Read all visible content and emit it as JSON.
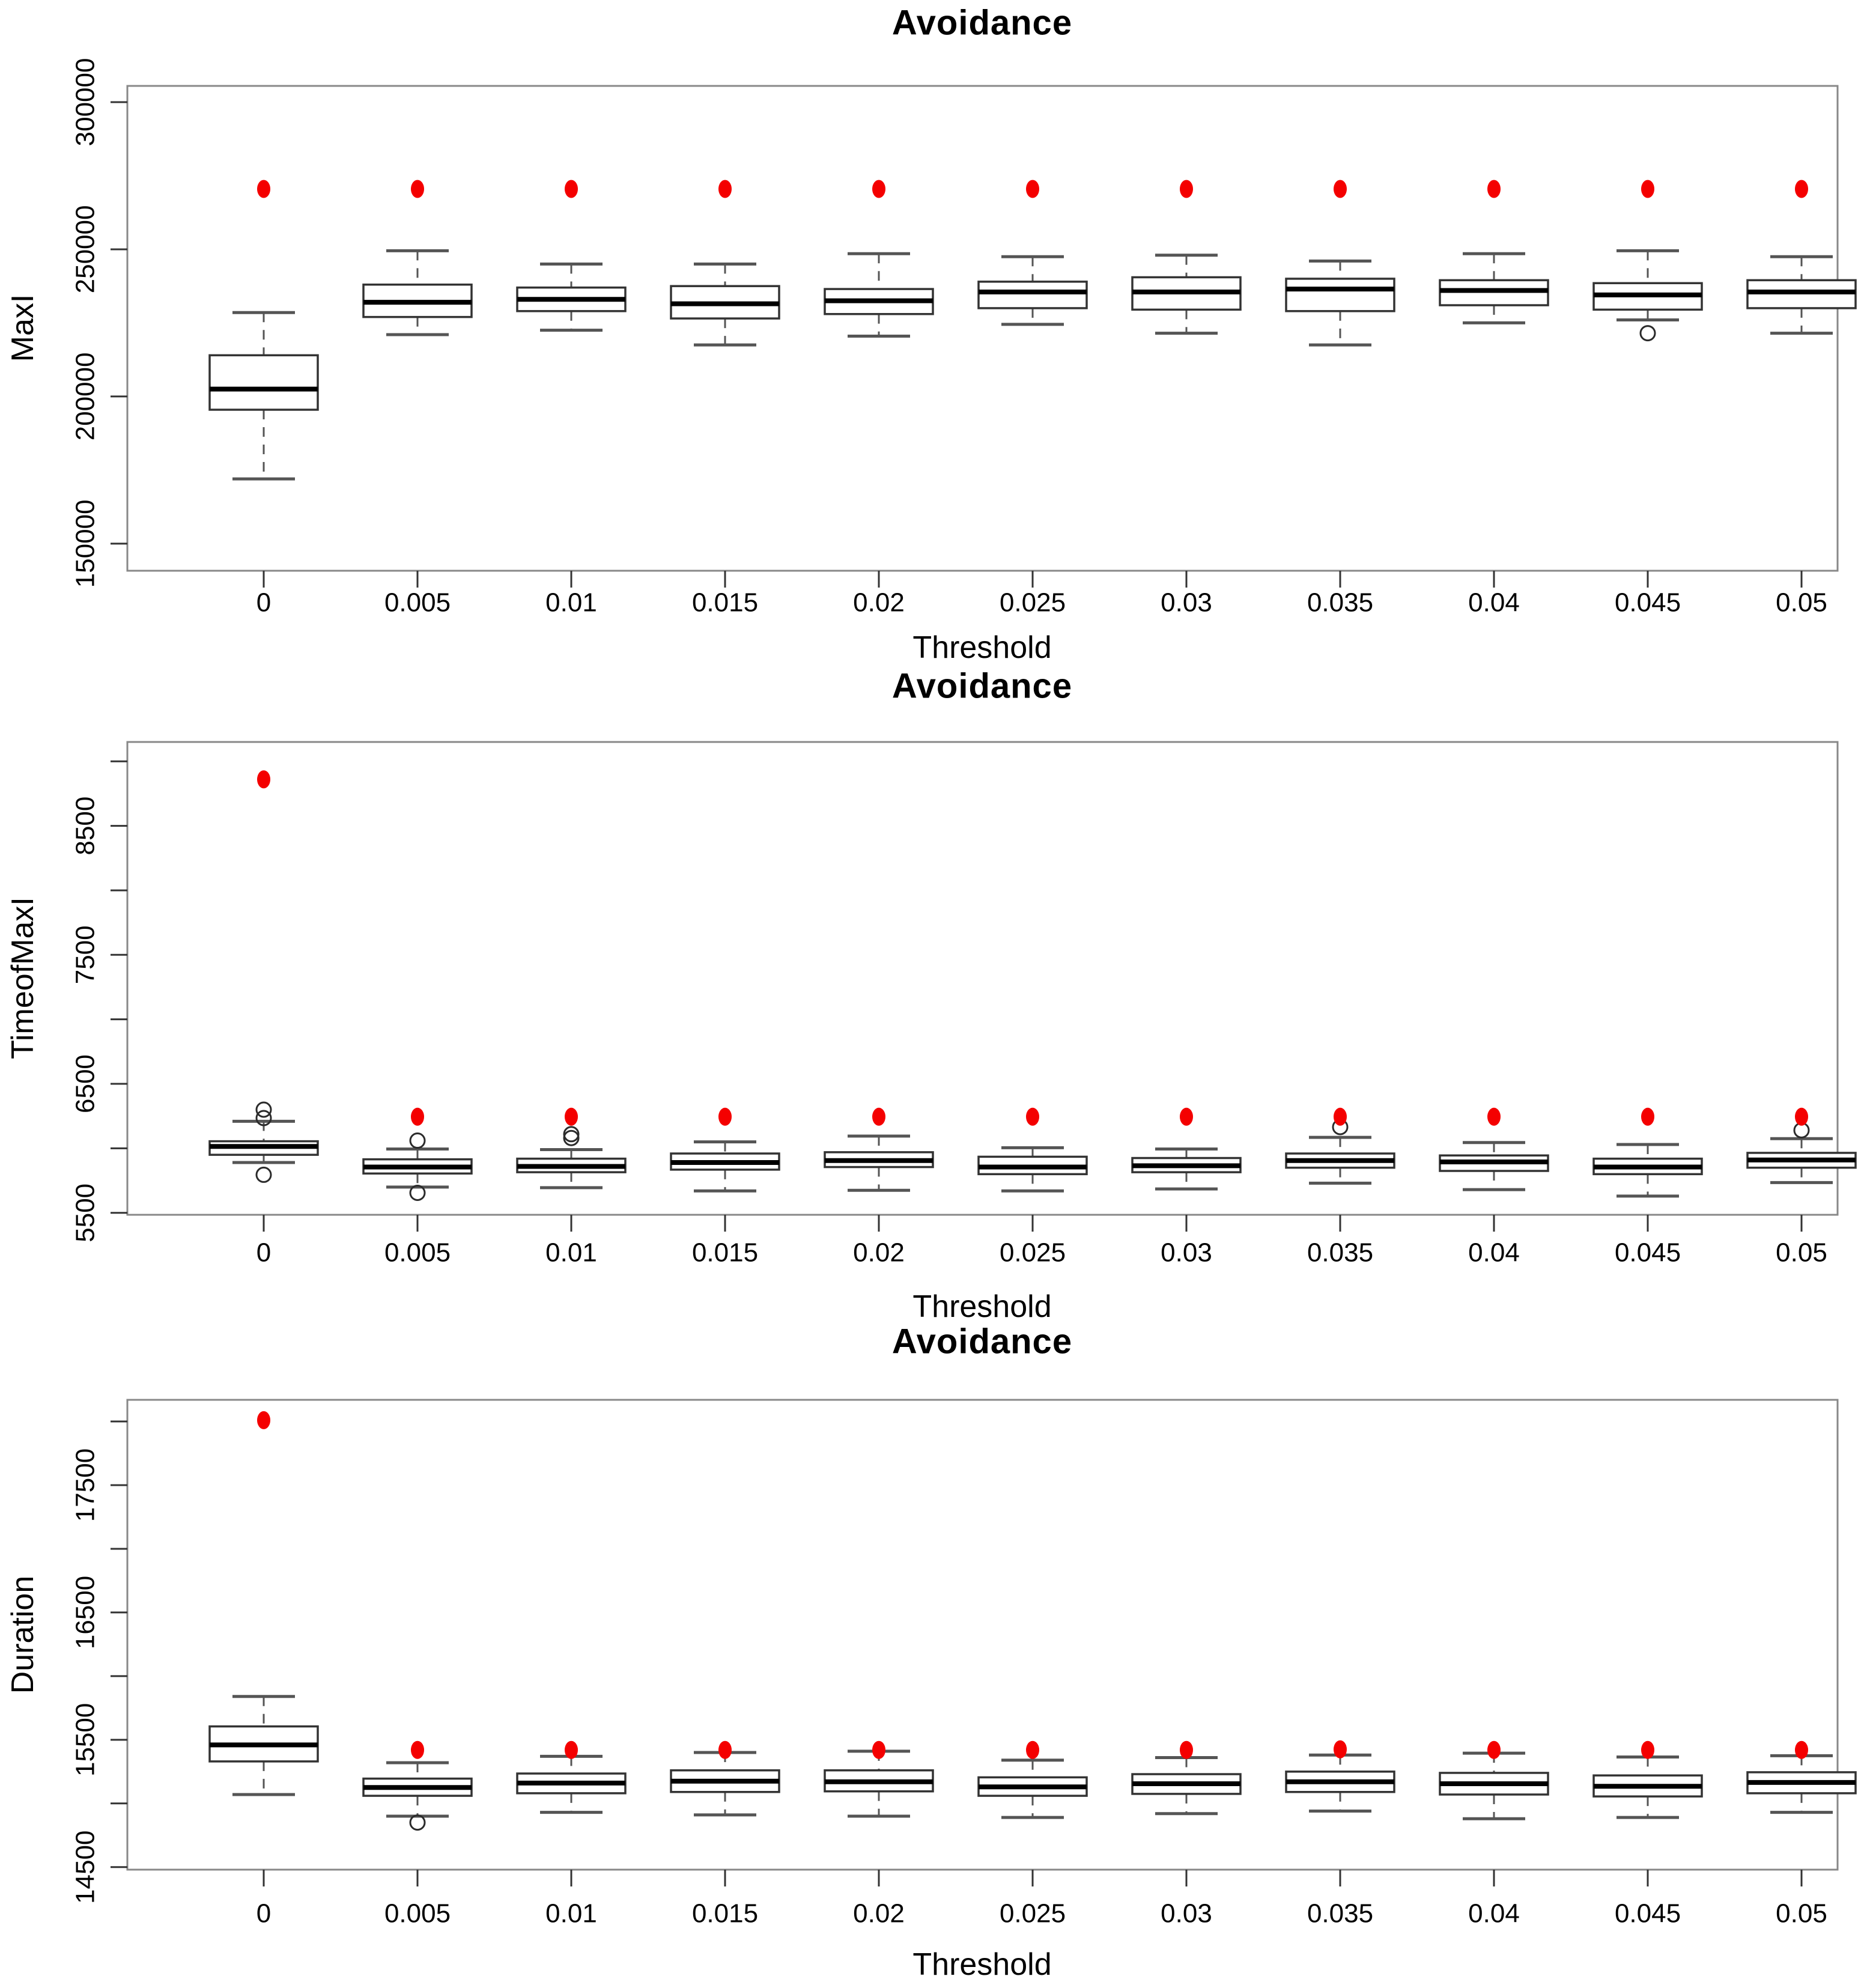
{
  "figure": {
    "background": "#ffffff"
  },
  "style": {
    "accent_red": "#f40000",
    "frame_gray": "#888888",
    "box_stroke": "#333333",
    "median_black": "#000000",
    "whisker_gray": "#555555",
    "tick_color": "#333333"
  },
  "chart_data": [
    {
      "type": "box",
      "title": "Avoidance",
      "xlabel": "Threshold",
      "ylabel": "MaxI",
      "legend": "none",
      "grid": false,
      "categories": [
        "0",
        "0.005",
        "0.01",
        "0.015",
        "0.02",
        "0.025",
        "0.03",
        "0.035",
        "0.04",
        "0.045",
        "0.05"
      ],
      "ylim": [
        140800,
        305500
      ],
      "yticks": [
        {
          "value": 150000,
          "label": "150000"
        },
        {
          "value": 200000,
          "label": "200000"
        },
        {
          "value": 250000,
          "label": "250000"
        },
        {
          "value": 300000,
          "label": "300000"
        }
      ],
      "yticks_minor": [],
      "boxes": [
        {
          "category": "0",
          "low": 172000,
          "q1": 195500,
          "median": 202500,
          "q3": 214000,
          "high": 228500,
          "outliers": [],
          "red_point": 270500
        },
        {
          "category": "0.005",
          "low": 221000,
          "q1": 227000,
          "median": 232000,
          "q3": 238000,
          "high": 249500,
          "outliers": [],
          "red_point": 270500
        },
        {
          "category": "0.01",
          "low": 222500,
          "q1": 229000,
          "median": 233000,
          "q3": 237000,
          "high": 245000,
          "outliers": [],
          "red_point": 270500
        },
        {
          "category": "0.015",
          "low": 217500,
          "q1": 226500,
          "median": 231500,
          "q3": 237500,
          "high": 245000,
          "outliers": [],
          "red_point": 270500
        },
        {
          "category": "0.02",
          "low": 220500,
          "q1": 228000,
          "median": 232500,
          "q3": 236500,
          "high": 248500,
          "outliers": [],
          "red_point": 270500
        },
        {
          "category": "0.025",
          "low": 224500,
          "q1": 230000,
          "median": 235500,
          "q3": 239000,
          "high": 247500,
          "outliers": [],
          "red_point": 270500
        },
        {
          "category": "0.03",
          "low": 221500,
          "q1": 229500,
          "median": 235500,
          "q3": 240500,
          "high": 248000,
          "outliers": [],
          "red_point": 270500
        },
        {
          "category": "0.035",
          "low": 217500,
          "q1": 229000,
          "median": 236500,
          "q3": 240000,
          "high": 246000,
          "outliers": [],
          "red_point": 270500
        },
        {
          "category": "0.04",
          "low": 225000,
          "q1": 231000,
          "median": 236000,
          "q3": 239500,
          "high": 248500,
          "outliers": [],
          "red_point": 270500
        },
        {
          "category": "0.045",
          "low": 226000,
          "q1": 229500,
          "median": 234500,
          "q3": 238500,
          "high": 249500,
          "outliers": [
            221500
          ],
          "red_point": 270500
        },
        {
          "category": "0.05",
          "low": 221500,
          "q1": 230000,
          "median": 235500,
          "q3": 239500,
          "high": 247500,
          "outliers": [],
          "red_point": 270500
        }
      ]
    },
    {
      "type": "box",
      "title": "Avoidance",
      "xlabel": "Threshold",
      "ylabel": "TimeofMaxI",
      "legend": "none",
      "grid": false,
      "categories": [
        "0",
        "0.005",
        "0.01",
        "0.015",
        "0.02",
        "0.025",
        "0.03",
        "0.035",
        "0.04",
        "0.045",
        "0.05"
      ],
      "ylim": [
        5485,
        9150
      ],
      "yticks": [
        {
          "value": 5500,
          "label": "5500"
        },
        {
          "value": 6500,
          "label": "6500"
        },
        {
          "value": 7500,
          "label": "7500"
        },
        {
          "value": 8500,
          "label": "8500"
        }
      ],
      "yticks_minor": [
        6000,
        7000,
        8000,
        9000
      ],
      "boxes": [
        {
          "category": "0",
          "low": 5890,
          "q1": 5950,
          "median": 6015,
          "q3": 6055,
          "high": 6210,
          "outliers": [
            6235,
            6300,
            5795
          ],
          "red_point": 8860
        },
        {
          "category": "0.005",
          "low": 5700,
          "q1": 5805,
          "median": 5855,
          "q3": 5915,
          "high": 5995,
          "outliers": [
            6060,
            5655
          ],
          "red_point": 6245
        },
        {
          "category": "0.01",
          "low": 5695,
          "q1": 5815,
          "median": 5860,
          "q3": 5920,
          "high": 5990,
          "outliers": [
            6080,
            6110
          ],
          "red_point": 6245
        },
        {
          "category": "0.015",
          "low": 5670,
          "q1": 5835,
          "median": 5890,
          "q3": 5960,
          "high": 6050,
          "outliers": [],
          "red_point": 6245
        },
        {
          "category": "0.02",
          "low": 5675,
          "q1": 5855,
          "median": 5905,
          "q3": 5970,
          "high": 6095,
          "outliers": [],
          "red_point": 6245
        },
        {
          "category": "0.025",
          "low": 5670,
          "q1": 5800,
          "median": 5855,
          "q3": 5935,
          "high": 6005,
          "outliers": [],
          "red_point": 6245
        },
        {
          "category": "0.03",
          "low": 5685,
          "q1": 5815,
          "median": 5865,
          "q3": 5925,
          "high": 5995,
          "outliers": [],
          "red_point": 6245
        },
        {
          "category": "0.035",
          "low": 5730,
          "q1": 5850,
          "median": 5905,
          "q3": 5960,
          "high": 6085,
          "outliers": [
            6165
          ],
          "red_point": 6245
        },
        {
          "category": "0.04",
          "low": 5680,
          "q1": 5825,
          "median": 5895,
          "q3": 5945,
          "high": 6045,
          "outliers": [],
          "red_point": 6245
        },
        {
          "category": "0.045",
          "low": 5630,
          "q1": 5800,
          "median": 5855,
          "q3": 5920,
          "high": 6030,
          "outliers": [],
          "red_point": 6245
        },
        {
          "category": "0.05",
          "low": 5735,
          "q1": 5850,
          "median": 5910,
          "q3": 5965,
          "high": 6075,
          "outliers": [
            6140
          ],
          "red_point": 6245
        }
      ]
    },
    {
      "type": "box",
      "title": "Avoidance",
      "xlabel": "Threshold",
      "ylabel": "Duration",
      "legend": "none",
      "grid": false,
      "categories": [
        "0",
        "0.005",
        "0.01",
        "0.015",
        "0.02",
        "0.025",
        "0.03",
        "0.035",
        "0.04",
        "0.045",
        "0.05"
      ],
      "ylim": [
        14480,
        18170
      ],
      "yticks": [
        {
          "value": 14500,
          "label": "14500"
        },
        {
          "value": 15500,
          "label": "15500"
        },
        {
          "value": 16500,
          "label": "16500"
        },
        {
          "value": 17500,
          "label": "17500"
        }
      ],
      "yticks_minor": [
        15000,
        16000,
        17000,
        18000
      ],
      "boxes": [
        {
          "category": "0",
          "low": 15070,
          "q1": 15330,
          "median": 15460,
          "q3": 15605,
          "high": 15840,
          "outliers": [],
          "red_point": 18010
        },
        {
          "category": "0.005",
          "low": 14900,
          "q1": 15060,
          "median": 15125,
          "q3": 15195,
          "high": 15320,
          "outliers": [
            14850
          ],
          "red_point": 15420
        },
        {
          "category": "0.01",
          "low": 14930,
          "q1": 15080,
          "median": 15160,
          "q3": 15235,
          "high": 15370,
          "outliers": [],
          "red_point": 15420
        },
        {
          "category": "0.015",
          "low": 14910,
          "q1": 15090,
          "median": 15175,
          "q3": 15260,
          "high": 15400,
          "outliers": [],
          "red_point": 15420
        },
        {
          "category": "0.02",
          "low": 14900,
          "q1": 15095,
          "median": 15170,
          "q3": 15260,
          "high": 15410,
          "outliers": [],
          "red_point": 15420
        },
        {
          "category": "0.025",
          "low": 14890,
          "q1": 15060,
          "median": 15130,
          "q3": 15205,
          "high": 15340,
          "outliers": [],
          "red_point": 15420
        },
        {
          "category": "0.03",
          "low": 14920,
          "q1": 15075,
          "median": 15155,
          "q3": 15230,
          "high": 15360,
          "outliers": [],
          "red_point": 15420
        },
        {
          "category": "0.035",
          "low": 14940,
          "q1": 15090,
          "median": 15170,
          "q3": 15250,
          "high": 15380,
          "outliers": [],
          "red_point": 15425
        },
        {
          "category": "0.04",
          "low": 14880,
          "q1": 15070,
          "median": 15155,
          "q3": 15240,
          "high": 15395,
          "outliers": [],
          "red_point": 15420
        },
        {
          "category": "0.045",
          "low": 14890,
          "q1": 15055,
          "median": 15135,
          "q3": 15220,
          "high": 15365,
          "outliers": [],
          "red_point": 15420
        },
        {
          "category": "0.05",
          "low": 14930,
          "q1": 15080,
          "median": 15165,
          "q3": 15245,
          "high": 15375,
          "outliers": [],
          "red_point": 15420
        }
      ]
    }
  ]
}
